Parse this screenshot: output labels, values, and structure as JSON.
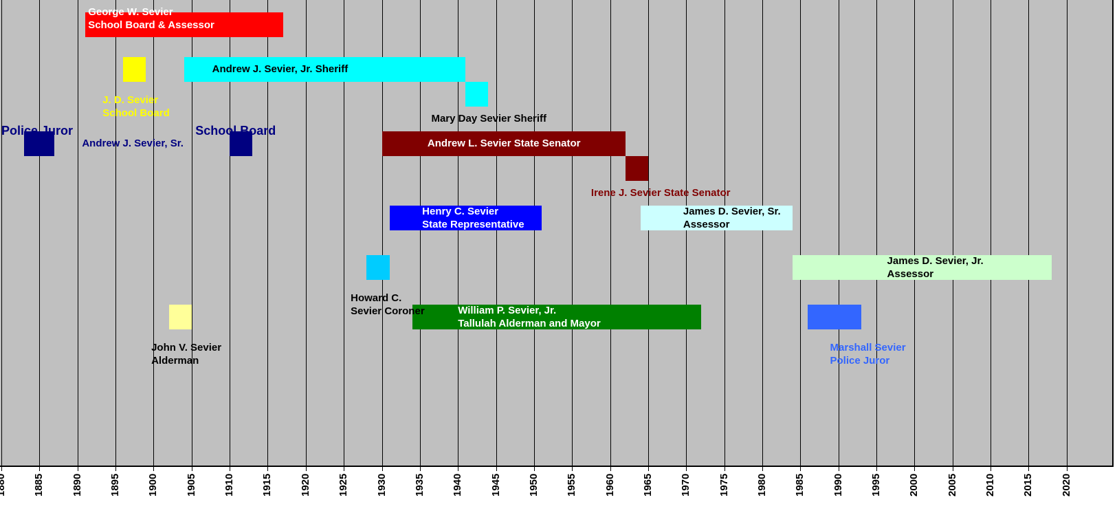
{
  "chart_data": {
    "type": "timeline",
    "title": "",
    "xlabel": "",
    "ylabel": "",
    "xlim": [
      1880,
      2020
    ],
    "x_ticks": [
      "1880",
      "1885",
      "1890",
      "1895",
      "1900",
      "1905",
      "1910",
      "1915",
      "1920",
      "1925",
      "1930",
      "1935",
      "1940",
      "1945",
      "1950",
      "1955",
      "1960",
      "1965",
      "1970",
      "1975",
      "1980",
      "1985",
      "1990",
      "1995",
      "2000",
      "2005",
      "2010",
      "2015",
      "2020"
    ],
    "grid": true,
    "category_labels": [
      {
        "text": "Police Juror",
        "x": 1880,
        "row": 5.35,
        "color": "#000080"
      },
      {
        "text": "School Board",
        "x": 1905.5,
        "row": 5.35,
        "color": "#000080"
      }
    ],
    "events": [
      {
        "label": "George W. Sevier\nSchool Board & Assessor",
        "start": 1891,
        "end": 1917,
        "row": 1,
        "color": "#ff0000",
        "label_color": "#ffffff",
        "label_x": 1891.4,
        "label_row": 0.75
      },
      {
        "label": "Andrew J. Sevier, Jr. Sheriff",
        "start": 1904,
        "end": 1941,
        "row": 2.8,
        "color": "#00ffff",
        "label_color": "#000000",
        "label_x": 1907.7,
        "label_row": 2.8
      },
      {
        "label": "J. D. Sevier\nSchool Board",
        "start": 1896,
        "end": 1899,
        "row": 2.8,
        "color": "#ffff00",
        "label_color": "#ffff00",
        "label_x": 1893.3,
        "label_row": 4.3
      },
      {
        "label": "Mary Day Sevier Sheriff",
        "start": 1941,
        "end": 1944,
        "row": 3.8,
        "color": "#00ffff",
        "label_color": "#000000",
        "label_x": 1936.5,
        "label_row": 4.8
      },
      {
        "label": "Andrew J. Sevier, Sr.",
        "start": 1883,
        "end": 1887,
        "row": 5.8,
        "color": "#000080",
        "label_color": "#000080",
        "label_x": 1890.6,
        "label_row": 5.8
      },
      {
        "label": "",
        "start": 1910,
        "end": 1913,
        "row": 5.8,
        "color": "#000080",
        "label_color": "#000080",
        "label_x": 1910,
        "label_row": 5.8
      },
      {
        "label": "Andrew L. Sevier State Senator",
        "start": 1930,
        "end": 1962,
        "row": 5.8,
        "color": "#800000",
        "label_color": "#ffffff",
        "label_x": 1936,
        "label_row": 5.8
      },
      {
        "label": "Irene J. Sevier State Senator",
        "start": 1962,
        "end": 1965,
        "row": 6.8,
        "color": "#800000",
        "label_color": "#800000",
        "label_x": 1957.5,
        "label_row": 7.8
      },
      {
        "label": "Henry C. Sevier\nState Representative",
        "start": 1931,
        "end": 1951,
        "row": 8.8,
        "color": "#0000ff",
        "label_color": "#ffffff",
        "label_x": 1935.3,
        "label_row": 8.8
      },
      {
        "label": "James D. Sevier, Sr.\nAssessor",
        "start": 1964,
        "end": 1984,
        "row": 8.8,
        "color": "#ccffff",
        "label_color": "#000000",
        "label_x": 1969.6,
        "label_row": 8.8
      },
      {
        "label": "James D. Sevier, Jr.\nAssessor",
        "start": 1984,
        "end": 2018,
        "row": 10.8,
        "color": "#ccffcc",
        "label_color": "#000000",
        "label_x": 1996.4,
        "label_row": 10.8
      },
      {
        "label": "Howard C.\nSevier Coroner",
        "start": 1928,
        "end": 1931,
        "row": 10.8,
        "color": "#00ccff",
        "label_color": "#000000",
        "label_x": 1925.9,
        "label_row": 12.3
      },
      {
        "label": "William P. Sevier, Jr.\nTallulah Alderman and Mayor",
        "start": 1934,
        "end": 1972,
        "row": 12.8,
        "color": "#008000",
        "label_color": "#ffffff",
        "label_x": 1940,
        "label_row": 12.8
      },
      {
        "label": "John V. Sevier\nAlderman",
        "start": 1902,
        "end": 1905,
        "row": 12.8,
        "color": "#ffff99",
        "label_color": "#000000",
        "label_x": 1899.7,
        "label_row": 14.3
      },
      {
        "label": "Marshall Sevier\nPolice Juror",
        "start": 1986,
        "end": 1993,
        "row": 12.8,
        "color": "#3366ff",
        "label_color": "#3366ff",
        "label_x": 1988.9,
        "label_row": 14.3
      }
    ]
  }
}
